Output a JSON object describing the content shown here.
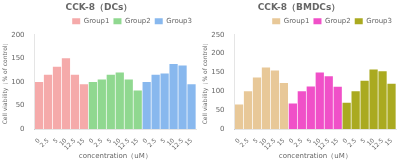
{
  "chart_data": [
    {
      "type": "bar",
      "title": "CCK-8（DCs）",
      "xlabel": "concentration（uM）",
      "ylabel": "Cell viability（% of control）",
      "categories": [
        "0",
        "2.5",
        "5",
        "10",
        "12.5",
        "15",
        "0",
        "2.5",
        "5",
        "10",
        "12.5",
        "15",
        "0",
        "2.5",
        "5",
        "10",
        "12.5",
        "15"
      ],
      "series": [
        {
          "name": "Group1",
          "color": "#F5AAAA",
          "values": [
            100,
            115,
            132,
            150,
            115,
            95,
            null,
            null,
            null,
            null,
            null,
            null,
            null,
            null,
            null,
            null,
            null,
            null
          ]
        },
        {
          "name": "Group2",
          "color": "#90D890",
          "values": [
            null,
            null,
            null,
            null,
            null,
            null,
            100,
            105,
            115,
            120,
            105,
            82,
            null,
            null,
            null,
            null,
            null,
            null
          ]
        },
        {
          "name": "Group3",
          "color": "#88B8EE",
          "values": [
            null,
            null,
            null,
            null,
            null,
            null,
            null,
            null,
            null,
            null,
            null,
            null,
            100,
            115,
            118,
            138,
            135,
            95
          ]
        }
      ],
      "ylim": [
        0,
        200
      ],
      "yticks": [
        0,
        50,
        100,
        150,
        200
      ],
      "grid": false,
      "legend": "upper right"
    },
    {
      "type": "bar",
      "title": "CCK-8（BMDCs）",
      "xlabel": "concentration（uM）",
      "ylabel": "Cell viability（% of control）",
      "categories": [
        "0",
        "2.5",
        "5",
        "10",
        "12.5",
        "15",
        "0",
        "2.5",
        "5",
        "10",
        "12.5",
        "15",
        "0",
        "2.5",
        "5",
        "10",
        "12.5",
        "15"
      ],
      "series": [
        {
          "name": "Group1",
          "color": "#E8C898",
          "values": [
            65,
            100,
            137,
            163,
            155,
            122,
            null,
            null,
            null,
            null,
            null,
            null,
            null,
            null,
            null,
            null,
            null,
            null
          ]
        },
        {
          "name": "Group2",
          "color": "#F050C8",
          "values": [
            null,
            null,
            null,
            null,
            null,
            null,
            68,
            100,
            113,
            150,
            140,
            112,
            null,
            null,
            null,
            null,
            null,
            null
          ]
        },
        {
          "name": "Group3",
          "color": "#AAAA20",
          "values": [
            null,
            null,
            null,
            null,
            null,
            null,
            null,
            null,
            null,
            null,
            null,
            null,
            70,
            100,
            128,
            158,
            153,
            120
          ]
        }
      ],
      "ylim": [
        0,
        250
      ],
      "yticks": [
        0,
        50,
        100,
        150,
        200,
        250
      ],
      "grid": false,
      "legend": "upper right"
    }
  ]
}
